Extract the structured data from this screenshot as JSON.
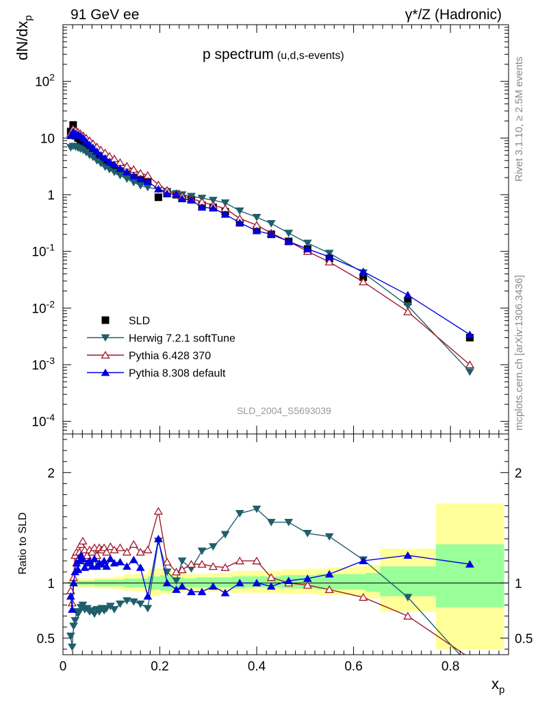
{
  "header": {
    "left": "91 GeV ee",
    "right": "γ*/Z (Hadronic)"
  },
  "side_labels": {
    "rivet": "Rivet 3.1.10, ≥ 2.5M events",
    "mcplots": "mcplots.cern.ch [arXiv:1306.3436]"
  },
  "watermark": "SLD_2004_S5693039",
  "colors": {
    "data": "#000000",
    "herwig": "#1f5f6b",
    "pythia6": "#a0162a",
    "pythia8": "#0000e0",
    "band_inner": "#99ff99",
    "band_outer": "#ffff99"
  },
  "chart_data": [
    {
      "type": "scatter",
      "panel": "main",
      "title": "p spectrum",
      "title_sub": "(u,d,s-events)",
      "ylabel": "dN/dx_p",
      "yscale": "log",
      "xlim": [
        0,
        0.92
      ],
      "ylim": [
        6e-05,
        1000
      ],
      "y_ticks": [
        "10^-4",
        "10^-3",
        "10^-2",
        "10^-1",
        "1",
        "10",
        "10^2"
      ],
      "legend_position": "bottom-left",
      "series": [
        {
          "name": "SLD",
          "marker": "square",
          "x": [
            0.016,
            0.021,
            0.026,
            0.031,
            0.036,
            0.042,
            0.048,
            0.055,
            0.062,
            0.07,
            0.078,
            0.087,
            0.096,
            0.106,
            0.118,
            0.132,
            0.146,
            0.16,
            0.175,
            0.197,
            0.215,
            0.234,
            0.246,
            0.265,
            0.287,
            0.31,
            0.335,
            0.365,
            0.4,
            0.43,
            0.466,
            0.505,
            0.55,
            0.62,
            0.712,
            0.84
          ],
          "y": [
            13,
            17,
            11,
            10,
            9,
            8.5,
            7.2,
            6.2,
            5.6,
            4.8,
            4.2,
            3.7,
            3.3,
            3.0,
            2.6,
            2.3,
            2.0,
            1.8,
            1.75,
            0.9,
            1.05,
            1.0,
            0.86,
            0.82,
            0.65,
            0.6,
            0.5,
            0.32,
            0.24,
            0.2,
            0.15,
            0.11,
            0.075,
            0.035,
            0.013,
            0.003
          ]
        },
        {
          "name": "Herwig 7.2.1 softTune",
          "marker": "triangle-down",
          "x": [
            0.016,
            0.021,
            0.026,
            0.031,
            0.036,
            0.042,
            0.048,
            0.055,
            0.062,
            0.07,
            0.078,
            0.087,
            0.096,
            0.106,
            0.118,
            0.132,
            0.146,
            0.16,
            0.175,
            0.197,
            0.215,
            0.234,
            0.246,
            0.265,
            0.287,
            0.31,
            0.335,
            0.365,
            0.4,
            0.43,
            0.466,
            0.505,
            0.55,
            0.62,
            0.712,
            0.84
          ],
          "y": [
            6.8,
            7.2,
            7.0,
            6.7,
            6.4,
            6.1,
            5.6,
            5.0,
            4.6,
            4.0,
            3.6,
            3.1,
            2.8,
            2.5,
            2.2,
            1.9,
            1.65,
            1.45,
            1.35,
            1.25,
            1.15,
            1.05,
            1.0,
            0.94,
            0.87,
            0.8,
            0.72,
            0.52,
            0.4,
            0.31,
            0.21,
            0.14,
            0.093,
            0.042,
            0.011,
            0.00075
          ]
        },
        {
          "name": "Pythia 6.428 370",
          "marker": "triangle-up-open",
          "x": [
            0.016,
            0.021,
            0.026,
            0.031,
            0.036,
            0.042,
            0.048,
            0.055,
            0.062,
            0.07,
            0.078,
            0.087,
            0.096,
            0.106,
            0.118,
            0.132,
            0.146,
            0.16,
            0.175,
            0.197,
            0.215,
            0.234,
            0.246,
            0.265,
            0.287,
            0.31,
            0.335,
            0.365,
            0.4,
            0.43,
            0.466,
            0.505,
            0.55,
            0.62,
            0.712,
            0.84
          ],
          "y": [
            12.0,
            14.5,
            13.5,
            12.8,
            12.0,
            11.0,
            10.0,
            9.0,
            8.0,
            7.0,
            6.2,
            5.5,
            4.8,
            4.3,
            3.7,
            3.2,
            2.8,
            2.4,
            2.2,
            1.5,
            1.2,
            1.05,
            0.95,
            0.85,
            0.75,
            0.65,
            0.57,
            0.38,
            0.29,
            0.21,
            0.15,
            0.1,
            0.065,
            0.029,
            0.0086,
            0.001
          ]
        },
        {
          "name": "Pythia 8.308 default",
          "marker": "triangle-up",
          "x": [
            0.016,
            0.021,
            0.026,
            0.031,
            0.036,
            0.042,
            0.048,
            0.055,
            0.062,
            0.07,
            0.078,
            0.087,
            0.096,
            0.106,
            0.118,
            0.132,
            0.146,
            0.16,
            0.175,
            0.197,
            0.215,
            0.234,
            0.246,
            0.265,
            0.287,
            0.31,
            0.335,
            0.365,
            0.4,
            0.43,
            0.466,
            0.505,
            0.55,
            0.62,
            0.712,
            0.84
          ],
          "y": [
            11.0,
            13.0,
            12.0,
            11.5,
            11.0,
            10.0,
            8.7,
            7.6,
            6.8,
            5.8,
            5.0,
            4.4,
            3.8,
            3.4,
            2.9,
            2.5,
            2.15,
            1.9,
            1.7,
            1.26,
            1.05,
            1.0,
            0.85,
            0.8,
            0.6,
            0.58,
            0.45,
            0.32,
            0.23,
            0.2,
            0.15,
            0.11,
            0.08,
            0.044,
            0.017,
            0.0034
          ]
        }
      ]
    },
    {
      "type": "line",
      "panel": "ratio",
      "ylabel": "Ratio to SLD",
      "xlabel": "x_p",
      "xlim": [
        0,
        0.92
      ],
      "ylim": [
        0.35,
        2.35
      ],
      "x_ticks": [
        "0",
        "0.2",
        "0.4",
        "0.6",
        "0.8"
      ],
      "y_ticks": [
        "0.5",
        "1",
        "2"
      ],
      "band_edges": [
        0.01,
        0.025,
        0.045,
        0.065,
        0.085,
        0.105,
        0.125,
        0.15,
        0.175,
        0.2,
        0.225,
        0.25,
        0.275,
        0.3,
        0.325,
        0.35,
        0.375,
        0.4,
        0.425,
        0.45,
        0.475,
        0.5,
        0.525,
        0.55,
        0.575,
        0.6,
        0.625,
        0.655,
        0.7,
        0.77,
        0.91
      ],
      "band_inner_lo": [
        0.99,
        0.98,
        0.98,
        0.97,
        0.97,
        0.97,
        0.96,
        0.96,
        0.94,
        0.93,
        0.95,
        0.96,
        0.96,
        0.96,
        0.96,
        0.95,
        0.96,
        0.96,
        0.96,
        0.95,
        0.95,
        0.95,
        0.94,
        0.94,
        0.94,
        0.94,
        0.92,
        0.88,
        0.88,
        0.78
      ],
      "band_inner_hi": [
        1.01,
        1.02,
        1.02,
        1.03,
        1.03,
        1.03,
        1.04,
        1.04,
        1.06,
        1.07,
        1.05,
        1.04,
        1.05,
        1.05,
        1.05,
        1.06,
        1.06,
        1.06,
        1.06,
        1.07,
        1.07,
        1.07,
        1.08,
        1.08,
        1.08,
        1.08,
        1.09,
        1.15,
        1.15,
        1.35
      ],
      "band_outer_lo": [
        0.98,
        0.96,
        0.96,
        0.95,
        0.95,
        0.94,
        0.93,
        0.92,
        0.88,
        0.9,
        0.92,
        0.93,
        0.93,
        0.92,
        0.92,
        0.91,
        0.91,
        0.91,
        0.91,
        0.9,
        0.9,
        0.9,
        0.89,
        0.89,
        0.89,
        0.88,
        0.86,
        0.74,
        0.74,
        0.4
      ],
      "band_outer_hi": [
        1.02,
        1.04,
        1.04,
        1.05,
        1.05,
        1.06,
        1.08,
        1.08,
        1.13,
        1.13,
        1.09,
        1.08,
        1.08,
        1.09,
        1.09,
        1.11,
        1.11,
        1.11,
        1.11,
        1.12,
        1.12,
        1.13,
        1.13,
        1.14,
        1.14,
        1.15,
        1.16,
        1.31,
        1.31,
        1.72
      ],
      "series": [
        {
          "name": "Herwig 7.2.1 softTune",
          "x": [
            0.016,
            0.019,
            0.022,
            0.025,
            0.028,
            0.031,
            0.034,
            0.037,
            0.041,
            0.045,
            0.05,
            0.055,
            0.06,
            0.065,
            0.07,
            0.075,
            0.08,
            0.085,
            0.09,
            0.098,
            0.106,
            0.118,
            0.132,
            0.146,
            0.16,
            0.175,
            0.197,
            0.215,
            0.234,
            0.246,
            0.265,
            0.287,
            0.31,
            0.335,
            0.365,
            0.4,
            0.43,
            0.466,
            0.505,
            0.55,
            0.62,
            0.712,
            0.84
          ],
          "y": [
            0.52,
            0.42,
            0.61,
            0.66,
            0.74,
            0.72,
            0.74,
            0.78,
            0.8,
            0.76,
            0.77,
            0.74,
            0.75,
            0.72,
            0.76,
            0.74,
            0.77,
            0.75,
            0.77,
            0.79,
            0.76,
            0.81,
            0.84,
            0.83,
            0.81,
            0.77,
            1.38,
            1.1,
            1.02,
            1.2,
            1.13,
            1.29,
            1.33,
            1.44,
            1.63,
            1.67,
            1.55,
            1.55,
            1.45,
            1.42,
            1.21,
            0.87,
            0.25
          ]
        },
        {
          "name": "Pythia 6.428 370",
          "x": [
            0.016,
            0.019,
            0.022,
            0.025,
            0.028,
            0.031,
            0.034,
            0.037,
            0.041,
            0.045,
            0.05,
            0.055,
            0.06,
            0.065,
            0.07,
            0.075,
            0.08,
            0.085,
            0.09,
            0.098,
            0.106,
            0.118,
            0.132,
            0.146,
            0.16,
            0.175,
            0.197,
            0.215,
            0.234,
            0.246,
            0.265,
            0.287,
            0.31,
            0.335,
            0.365,
            0.4,
            0.43,
            0.466,
            0.505,
            0.55,
            0.62,
            0.712,
            0.84
          ],
          "y": [
            0.93,
            0.82,
            1.05,
            1.25,
            1.28,
            1.21,
            1.28,
            1.35,
            1.38,
            1.3,
            1.25,
            1.3,
            1.28,
            1.32,
            1.25,
            1.32,
            1.3,
            1.32,
            1.28,
            1.33,
            1.3,
            1.32,
            1.28,
            1.35,
            1.28,
            1.3,
            1.65,
            1.19,
            1.1,
            1.12,
            1.17,
            1.17,
            1.15,
            1.14,
            1.2,
            1.2,
            1.05,
            1.0,
            0.98,
            0.94,
            0.87,
            0.7,
            0.32
          ]
        },
        {
          "name": "Pythia 8.308 default",
          "x": [
            0.016,
            0.019,
            0.022,
            0.025,
            0.028,
            0.031,
            0.034,
            0.037,
            0.041,
            0.045,
            0.05,
            0.055,
            0.06,
            0.065,
            0.07,
            0.075,
            0.08,
            0.085,
            0.09,
            0.098,
            0.106,
            0.118,
            0.132,
            0.146,
            0.16,
            0.175,
            0.197,
            0.215,
            0.234,
            0.246,
            0.265,
            0.287,
            0.31,
            0.335,
            0.365,
            0.4,
            0.43,
            0.466,
            0.505,
            0.55,
            0.62,
            0.712,
            0.84
          ],
          "y": [
            0.88,
            0.76,
            1.0,
            1.1,
            1.18,
            1.12,
            1.2,
            1.25,
            1.22,
            1.14,
            1.18,
            1.2,
            1.15,
            1.22,
            1.15,
            1.18,
            1.17,
            1.2,
            1.15,
            1.22,
            1.18,
            1.19,
            1.15,
            1.21,
            1.14,
            0.88,
            1.4,
            1.0,
            0.94,
            0.97,
            0.92,
            0.92,
            0.97,
            0.91,
            1.0,
            1.0,
            0.97,
            1.02,
            1.04,
            1.08,
            1.2,
            1.25,
            1.17
          ]
        }
      ]
    }
  ]
}
